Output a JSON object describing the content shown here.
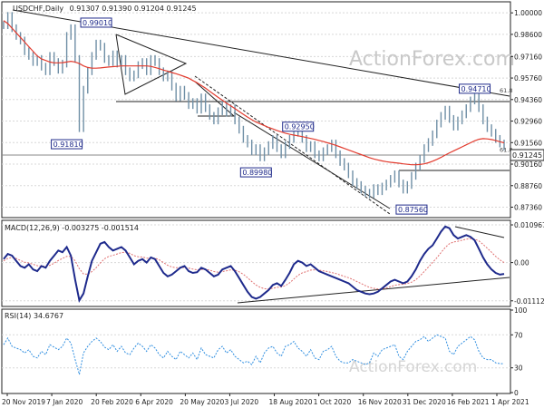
{
  "chart_data": {
    "type": "line",
    "watermark": "ActionForex.com",
    "x_labels": [
      "20 Nov 2019",
      "7 Jan 2020",
      "20 Feb 2020",
      "6 Apr 2020",
      "20 May 2020",
      "3 Jul 2020",
      "18 Aug 2020",
      "1 Oct 2020",
      "16 Nov 2020",
      "31 Dec 2020",
      "16 Feb 2021",
      "1 Apr 2021"
    ],
    "price": {
      "title": "USDCHF,Daily",
      "ohlc": "0.91307 0.91390 0.91204 0.91245",
      "ylim": [
        0.868,
        1.006
      ],
      "ticks": [
        1.0,
        0.986,
        0.9716,
        0.9576,
        0.9436,
        0.9296,
        0.9156,
        0.9016,
        0.8876,
        0.8736
      ],
      "tick_labels": [
        "1.00000",
        "0.98600",
        "0.97160",
        "0.95760",
        "0.94360",
        "0.92960",
        "0.91560",
        "0.90160",
        "0.88760",
        "0.87360"
      ],
      "last_price": 0.91245,
      "last_label": "0.91245",
      "close": [
        0.992,
        0.998,
        0.99,
        0.985,
        0.982,
        0.975,
        0.972,
        0.968,
        0.97,
        0.965,
        0.962,
        0.972,
        0.968,
        0.963,
        0.967,
        0.985,
        0.99,
        0.97,
        0.925,
        0.95,
        0.962,
        0.972,
        0.98,
        0.978,
        0.97,
        0.968,
        0.973,
        0.967,
        0.97,
        0.962,
        0.958,
        0.96,
        0.966,
        0.968,
        0.962,
        0.97,
        0.968,
        0.962,
        0.958,
        0.96,
        0.952,
        0.945,
        0.95,
        0.946,
        0.94,
        0.942,
        0.937,
        0.945,
        0.938,
        0.933,
        0.93,
        0.936,
        0.94,
        0.935,
        0.938,
        0.93,
        0.924,
        0.918,
        0.915,
        0.91,
        0.912,
        0.906,
        0.91,
        0.914,
        0.918,
        0.912,
        0.908,
        0.914,
        0.918,
        0.926,
        0.922,
        0.918,
        0.912,
        0.914,
        0.908,
        0.906,
        0.91,
        0.912,
        0.915,
        0.908,
        0.903,
        0.9,
        0.895,
        0.89,
        0.888,
        0.885,
        0.883,
        0.882,
        0.886,
        0.884,
        0.887,
        0.889,
        0.892,
        0.895,
        0.889,
        0.885,
        0.888,
        0.894,
        0.9,
        0.905,
        0.912,
        0.916,
        0.921,
        0.928,
        0.933,
        0.937,
        0.931,
        0.926,
        0.93,
        0.934,
        0.938,
        0.943,
        0.945,
        0.938,
        0.93,
        0.925,
        0.922,
        0.918,
        0.915,
        0.913
      ],
      "ma": [
        0.995,
        0.993,
        0.99,
        0.987,
        0.984,
        0.981,
        0.978,
        0.975,
        0.972,
        0.97,
        0.969,
        0.968,
        0.9675,
        0.9675,
        0.9676,
        0.968,
        0.9685,
        0.968,
        0.967,
        0.9655,
        0.9645,
        0.964,
        0.964,
        0.9642,
        0.9645,
        0.9648,
        0.965,
        0.9652,
        0.9655,
        0.9655,
        0.9655,
        0.9655,
        0.9655,
        0.9655,
        0.9655,
        0.9652,
        0.9645,
        0.9637,
        0.9628,
        0.962,
        0.9612,
        0.9604,
        0.9595,
        0.9585,
        0.9575,
        0.956,
        0.9545,
        0.9528,
        0.951,
        0.949,
        0.947,
        0.945,
        0.9432,
        0.9413,
        0.9395,
        0.9377,
        0.9358,
        0.934,
        0.9322,
        0.9305,
        0.929,
        0.9278,
        0.9266,
        0.9255,
        0.9245,
        0.9235,
        0.9226,
        0.9217,
        0.921,
        0.9205,
        0.92,
        0.9195,
        0.9189,
        0.9183,
        0.9177,
        0.917,
        0.9163,
        0.9155,
        0.9147,
        0.9138,
        0.9128,
        0.9118,
        0.9108,
        0.9098,
        0.9088,
        0.9078,
        0.9068,
        0.9058,
        0.905,
        0.9043,
        0.9037,
        0.9032,
        0.9028,
        0.9025,
        0.9022,
        0.9018,
        0.9015,
        0.9012,
        0.9012,
        0.9014,
        0.9018,
        0.9025,
        0.9035,
        0.9047,
        0.906,
        0.9075,
        0.9089,
        0.9102,
        0.9115,
        0.9128,
        0.9142,
        0.9155,
        0.9168,
        0.9178,
        0.9182,
        0.918,
        0.9176,
        0.917,
        0.9162,
        0.9155
      ],
      "annotations": [
        {
          "label": "0.99010",
          "x": 22,
          "y": 0.9901
        },
        {
          "label": "0.91810",
          "x": 15,
          "y": 0.9181
        },
        {
          "label": "0.92950",
          "x": 70,
          "y": 0.9295
        },
        {
          "label": "0.89980",
          "x": 60,
          "y": 0.8998
        },
        {
          "label": "0.87560",
          "x": 97,
          "y": 0.8756
        },
        {
          "label": "0.94710",
          "x": 112,
          "y": 0.9471
        }
      ],
      "fib_labels": [
        {
          "label": "61.8",
          "y": 0.9471
        },
        {
          "label": "61.8",
          "y": 0.9085
        }
      ]
    },
    "macd": {
      "title": "MACD(12,26,9) -0.003275 -0.001514",
      "ylim": [
        -0.0125,
        0.0115
      ],
      "ticks": [
        0.010967,
        0.0,
        -0.011127
      ],
      "tick_labels": [
        "0.010967",
        "0.00",
        "-0.011127"
      ],
      "macd": [
        0.001,
        0.0025,
        0.002,
        0.0005,
        -0.001,
        -0.0015,
        -0.0005,
        -0.002,
        -0.0025,
        -0.001,
        -0.0015,
        0.0005,
        0.002,
        0.0035,
        0.003,
        0.0045,
        0.002,
        -0.005,
        -0.011,
        -0.009,
        -0.004,
        0.0005,
        0.003,
        0.0055,
        0.006,
        0.0045,
        0.0035,
        0.004,
        0.0045,
        0.0035,
        0.0015,
        -0.0005,
        0.0005,
        0.001,
        0.0,
        0.0015,
        0.001,
        -0.001,
        -0.003,
        -0.004,
        -0.0035,
        -0.0025,
        -0.0015,
        -0.001,
        -0.0025,
        -0.003,
        -0.0028,
        -0.0015,
        -0.002,
        -0.003,
        -0.004,
        -0.0035,
        -0.002,
        -0.0015,
        -0.001,
        -0.0025,
        -0.0045,
        -0.0065,
        -0.0085,
        -0.01,
        -0.0105,
        -0.01,
        -0.009,
        -0.008,
        -0.0065,
        -0.006,
        -0.0068,
        -0.005,
        -0.003,
        -0.0005,
        0.0005,
        0.0,
        -0.001,
        -0.0005,
        -0.0015,
        -0.0025,
        -0.003,
        -0.0035,
        -0.004,
        -0.0045,
        -0.005,
        -0.0055,
        -0.006,
        -0.007,
        -0.008,
        -0.0085,
        -0.009,
        -0.0092,
        -0.009,
        -0.0085,
        -0.0075,
        -0.0065,
        -0.0055,
        -0.005,
        -0.0055,
        -0.006,
        -0.0055,
        -0.004,
        -0.002,
        0.0005,
        0.0025,
        0.004,
        0.005,
        0.007,
        0.009,
        0.0105,
        0.01,
        0.008,
        0.007,
        0.0075,
        0.008,
        0.0075,
        0.0065,
        0.004,
        0.0015,
        -0.0005,
        -0.002,
        -0.003,
        -0.0035,
        -0.0033
      ],
      "signal": [
        0.0005,
        0.0012,
        0.0015,
        0.0012,
        0.0006,
        0.0001,
        -0.0001,
        -0.0005,
        -0.0009,
        -0.001,
        -0.0011,
        -0.0008,
        -0.0002,
        0.0006,
        0.0012,
        0.0018,
        0.0018,
        0.0005,
        -0.0018,
        -0.0033,
        -0.0034,
        -0.0026,
        -0.0015,
        -0.0001,
        0.0011,
        0.0018,
        0.0021,
        0.0025,
        0.0029,
        0.003,
        0.0027,
        0.002,
        0.0017,
        0.0016,
        0.0013,
        0.0013,
        0.0013,
        0.0008,
        0.0,
        -0.0008,
        -0.0013,
        -0.0015,
        -0.0015,
        -0.0014,
        -0.0016,
        -0.0019,
        -0.0021,
        -0.002,
        -0.002,
        -0.0022,
        -0.0026,
        -0.0028,
        -0.0026,
        -0.0024,
        -0.0021,
        -0.0022,
        -0.0027,
        -0.0034,
        -0.0044,
        -0.0055,
        -0.0065,
        -0.0072,
        -0.0076,
        -0.0077,
        -0.0075,
        -0.0072,
        -0.0071,
        -0.0067,
        -0.0059,
        -0.0048,
        -0.0037,
        -0.003,
        -0.0026,
        -0.0022,
        -0.0021,
        -0.0022,
        -0.0024,
        -0.0026,
        -0.0029,
        -0.0032,
        -0.0036,
        -0.004,
        -0.0044,
        -0.0049,
        -0.0055,
        -0.0061,
        -0.0067,
        -0.0072,
        -0.0075,
        -0.0077,
        -0.0076,
        -0.0074,
        -0.007,
        -0.0066,
        -0.0064,
        -0.0063,
        -0.0061,
        -0.0057,
        -0.005,
        -0.0039,
        -0.0026,
        -0.0013,
        0.0,
        0.0014,
        0.0029,
        0.0044,
        0.0055,
        0.006,
        0.0062,
        0.0065,
        0.0068,
        0.007,
        0.0068,
        0.0063,
        0.0053,
        0.0042,
        0.003,
        0.0018,
        0.0008,
        0.0
      ]
    },
    "rsi": {
      "title": "RSI(14) 34.6767",
      "ylim": [
        0,
        100
      ],
      "ticks": [
        100,
        70,
        30,
        0
      ],
      "tick_labels": [
        "100",
        "70",
        "30",
        "0"
      ],
      "values": [
        58,
        66,
        56,
        54,
        52,
        48,
        52,
        44,
        42,
        50,
        46,
        58,
        55,
        52,
        56,
        66,
        60,
        40,
        22,
        48,
        56,
        62,
        66,
        62,
        55,
        52,
        58,
        50,
        56,
        48,
        46,
        54,
        60,
        56,
        50,
        58,
        54,
        46,
        42,
        50,
        44,
        40,
        50,
        46,
        42,
        48,
        40,
        54,
        46,
        44,
        42,
        52,
        56,
        48,
        52,
        44,
        40,
        36,
        38,
        34,
        44,
        36,
        48,
        54,
        56,
        48,
        44,
        56,
        58,
        62,
        54,
        50,
        44,
        52,
        42,
        40,
        50,
        52,
        56,
        44,
        38,
        36,
        36,
        40,
        38,
        36,
        34,
        36,
        48,
        44,
        52,
        54,
        56,
        58,
        44,
        40,
        50,
        56,
        62,
        64,
        68,
        62,
        66,
        70,
        68,
        66,
        50,
        46,
        56,
        60,
        64,
        68,
        64,
        50,
        42,
        40,
        40,
        36,
        35,
        35
      ]
    }
  }
}
